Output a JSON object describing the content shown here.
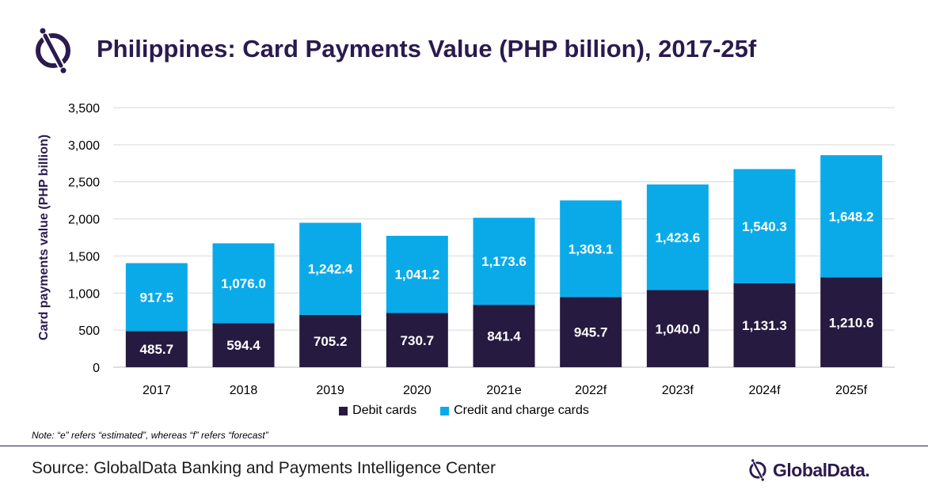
{
  "header": {
    "title": "Philippines: Card Payments Value (PHP billion), 2017-25f"
  },
  "chart_data": {
    "type": "bar",
    "stacked": true,
    "title": "Philippines: Card Payments Value (PHP billion), 2017-25f",
    "xlabel": "",
    "ylabel": "Card payments value (PHP billion)",
    "ylim": [
      0,
      3500
    ],
    "yticks": [
      0,
      500,
      1000,
      1500,
      2000,
      2500,
      3000,
      3500
    ],
    "ytick_labels": [
      "0",
      "500",
      "1,000",
      "1,500",
      "2,000",
      "2,500",
      "3,000",
      "3,500"
    ],
    "grid": true,
    "legend_position": "bottom",
    "categories": [
      "2017",
      "2018",
      "2019",
      "2020",
      "2021e",
      "2022f",
      "2023f",
      "2024f",
      "2025f"
    ],
    "series": [
      {
        "name": "Debit cards",
        "color": "#261a40",
        "values": [
          485.7,
          594.4,
          705.2,
          730.7,
          841.4,
          945.7,
          1040.0,
          1131.3,
          1210.6
        ],
        "labels": [
          "485.7",
          "594.4",
          "705.2",
          "730.7",
          "841.4",
          "945.7",
          "1,040.0",
          "1,131.3",
          "1,210.6"
        ]
      },
      {
        "name": "Credit and charge cards",
        "color": "#0aaae9",
        "values": [
          917.5,
          1076.0,
          1242.4,
          1041.2,
          1173.6,
          1303.1,
          1423.6,
          1540.3,
          1648.2
        ],
        "labels": [
          "917.5",
          "1,076.0",
          "1,242.4",
          "1,041.2",
          "1,173.6",
          "1,303.1",
          "1,423.6",
          "1,540.3",
          "1,648.2"
        ]
      }
    ],
    "colors": {
      "gridline": "#d9d9d9",
      "axis": "#bfbfbf",
      "label_text": "#ffffff"
    }
  },
  "note": "Note: “e” refers “estimated”, whereas “f” refers “forecast”",
  "footer": {
    "source": "Source: GlobalData Banking and Payments Intelligence Center",
    "brand_name": "GlobalData."
  },
  "icons": {
    "logo": "globaldata-logo-icon"
  },
  "colors": {
    "brand_dark": "#2a1a4e"
  }
}
